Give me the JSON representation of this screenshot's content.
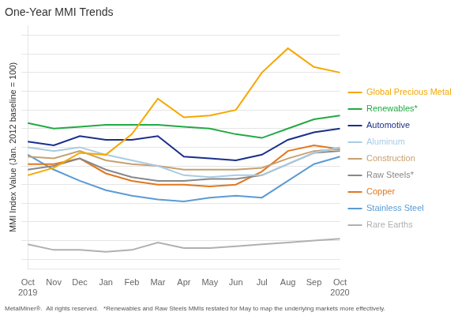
{
  "chart_data": {
    "type": "line",
    "title": "One-Year MMI Trends",
    "ylabel": "MMI Index Value (Jan. 2012 baseline = 100)",
    "annotations": [
      "MetalMiner®.  All rights reserved.   *Renewables and Raw Steels MMIs restated for May to map the underlying markets more effectively."
    ],
    "categories": [
      "Oct\n2019",
      "Nov",
      "Dec",
      "Jan",
      "Feb",
      "Mar",
      "Apr",
      "May",
      "Jun",
      "Jul",
      "Aug",
      "Sep",
      "Oct\n2020"
    ],
    "series": [
      {
        "name": "Global Precious Metals",
        "color": "#F5A800",
        "values": [
          115,
          119,
          127,
          126,
          137,
          156,
          146,
          147,
          150,
          170,
          183,
          173,
          170
        ]
      },
      {
        "name": "Renewables*",
        "color": "#22aa44",
        "values": [
          143,
          140,
          141,
          142,
          142,
          142,
          141,
          140,
          137,
          135,
          140,
          145,
          147
        ]
      },
      {
        "name": "Automotive",
        "color": "#1a2f8a",
        "values": [
          133,
          131,
          136,
          134,
          134,
          136,
          125,
          124,
          123,
          126,
          134,
          138,
          140
        ]
      },
      {
        "name": "Aluminum",
        "color": "#a8cce4",
        "values": [
          130,
          128,
          130,
          126,
          123,
          120,
          115,
          114,
          115,
          115,
          121,
          127,
          130
        ]
      },
      {
        "name": "Construction",
        "color": "#c8a070",
        "values": [
          125,
          124,
          128,
          123,
          121,
          120,
          118,
          118,
          118,
          119,
          124,
          128,
          129
        ]
      },
      {
        "name": "Raw Steels*",
        "color": "#888888",
        "values": [
          118,
          120,
          124,
          118,
          114,
          112,
          112,
          113,
          113,
          115,
          121,
          127,
          128
        ]
      },
      {
        "name": "Copper",
        "color": "#e07820",
        "values": [
          121,
          121,
          124,
          116,
          112,
          110,
          110,
          109,
          110,
          117,
          128,
          131,
          129
        ]
      },
      {
        "name": "Stainless Steel",
        "color": "#5b9bd5",
        "values": [
          126,
          118,
          112,
          107,
          104,
          102,
          101,
          103,
          104,
          103,
          112,
          121,
          125
        ]
      },
      {
        "name": "Rare Earths",
        "color": "#b0b0b0",
        "values": [
          78,
          75,
          75,
          74,
          75,
          79,
          76,
          76,
          77,
          78,
          79,
          80,
          81
        ]
      }
    ],
    "ylim": [
      65,
      195
    ],
    "yticks": [
      70,
      80,
      90,
      100,
      110,
      120,
      130,
      140,
      150,
      160,
      170,
      180,
      190
    ],
    "grid": true,
    "legend": "right",
    "tick_labels": "x"
  }
}
